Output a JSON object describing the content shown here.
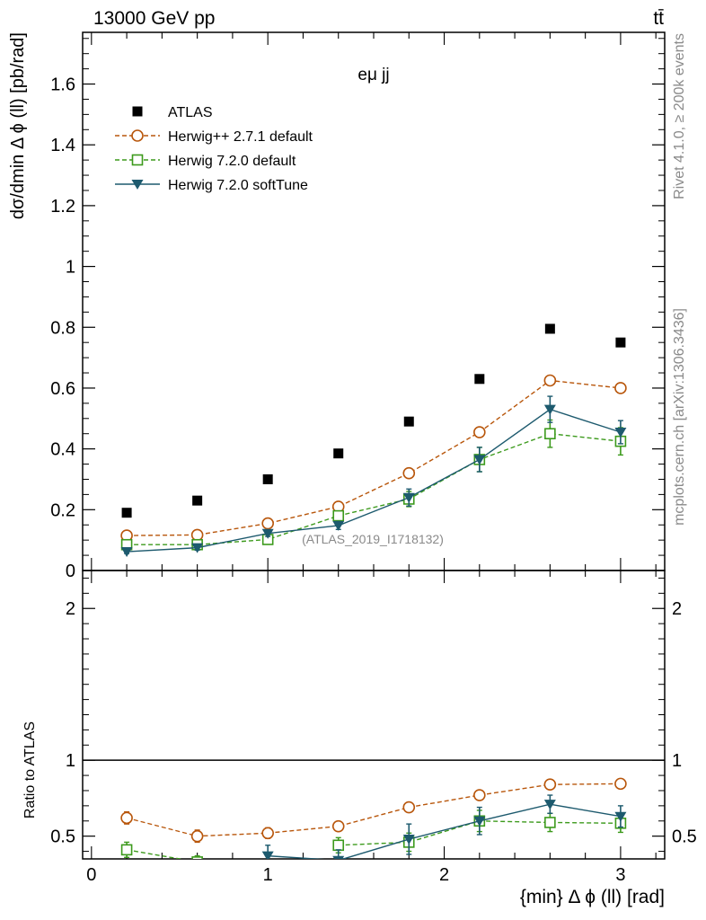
{
  "header": {
    "energy_label": "13000 GeV pp",
    "process_label": "tt̄",
    "side_label_1": "Rivet 4.1.0, ≥ 200k events",
    "side_label_2": "mcplots.cern.ch [arXiv:1306.3436]"
  },
  "chart_data": [
    {
      "type": "scatter",
      "panel": "main",
      "title": "eμ jj",
      "watermark": "(ATLAS_2019_I1718132)",
      "ylabel": "dσ/dmin Δ ϕ (ll) [pb/rad]",
      "xlim": [
        -0.05,
        3.25
      ],
      "ylim": [
        0,
        1.77
      ],
      "y_ticks": [
        0,
        0.2,
        0.4,
        0.6,
        0.8,
        1,
        1.2,
        1.4,
        1.6
      ],
      "y_tick_labels": [
        "0",
        "0.2",
        "0.4",
        "0.6",
        "0.8",
        "1",
        "1.2",
        "1.4",
        "1.6"
      ],
      "legend_position": "top-left",
      "x": [
        0.2,
        0.6,
        1.0,
        1.4,
        1.8,
        2.2,
        2.6,
        3.0
      ],
      "series": [
        {
          "name": "ATLAS",
          "marker": "filled-square",
          "color": "#000000",
          "line": "none",
          "values": [
            0.19,
            0.23,
            0.3,
            0.385,
            0.49,
            0.63,
            0.795,
            0.75
          ],
          "errors": [
            0,
            0,
            0,
            0,
            0,
            0,
            0,
            0
          ]
        },
        {
          "name": "Herwig++ 2.7.1 default",
          "marker": "open-circle",
          "color": "#b8560b",
          "line": "dashed",
          "values": [
            0.115,
            0.117,
            0.155,
            0.21,
            0.32,
            0.455,
            0.625,
            0.6
          ],
          "errors": [
            0.008,
            0.008,
            0.009,
            0.01,
            0.011,
            0.013,
            0.015,
            0.014
          ]
        },
        {
          "name": "Herwig 7.2.0 default",
          "marker": "open-square",
          "color": "#3c9a1c",
          "line": "dashed",
          "values": [
            0.085,
            0.085,
            0.102,
            0.18,
            0.235,
            0.365,
            0.45,
            0.425
          ],
          "errors": [
            0.008,
            0.008,
            0.01,
            0.015,
            0.025,
            0.04,
            0.045,
            0.045
          ]
        },
        {
          "name": "Herwig 7.2.0 softTune",
          "marker": "filled-triangle-down",
          "color": "#1d5a6e",
          "line": "solid",
          "values": [
            0.062,
            0.075,
            0.122,
            0.148,
            0.24,
            0.365,
            0.53,
            0.455
          ],
          "errors": [
            0.006,
            0.008,
            0.01,
            0.013,
            0.028,
            0.04,
            0.043,
            0.038
          ]
        }
      ]
    },
    {
      "type": "scatter",
      "panel": "ratio",
      "ylabel": "Ratio to ATLAS",
      "xlabel": "{min} Δ ϕ (ll) [rad]",
      "xlim": [
        -0.05,
        3.25
      ],
      "ylim": [
        0.35,
        2.25
      ],
      "reference_line": 1,
      "x_ticks": [
        0,
        1,
        2,
        3
      ],
      "x_tick_labels": [
        "0",
        "1",
        "2",
        "3"
      ],
      "y_ticks": [
        0.5,
        1,
        2
      ],
      "y_tick_labels": [
        "0.5",
        "1",
        "2"
      ],
      "x": [
        0.2,
        0.6,
        1.0,
        1.4,
        1.8,
        2.2,
        2.6,
        3.0
      ],
      "series": [
        {
          "name": "Herwig++ 2.7.1 default",
          "marker": "open-circle",
          "color": "#b8560b",
          "line": "dashed",
          "values": [
            0.62,
            0.5,
            0.52,
            0.565,
            0.69,
            0.77,
            0.84,
            0.845
          ],
          "errors": [
            0.04,
            0.04,
            0.035,
            0.03,
            0.025,
            0.02,
            0.015,
            0.015
          ]
        },
        {
          "name": "Herwig 7.2.0 default",
          "marker": "open-square",
          "color": "#3c9a1c",
          "line": "dashed",
          "values": [
            0.41,
            0.33,
            null,
            0.44,
            0.46,
            0.6,
            0.59,
            0.585
          ],
          "errors": [
            0.05,
            0.04,
            null,
            0.05,
            0.06,
            0.07,
            0.06,
            0.06
          ]
        },
        {
          "name": "Herwig 7.2.0 softTune",
          "marker": "filled-triangle-down",
          "color": "#1d5a6e",
          "line": "solid",
          "values": [
            null,
            null,
            0.37,
            0.34,
            0.48,
            0.6,
            0.71,
            0.63
          ],
          "errors": [
            null,
            null,
            0.07,
            0.07,
            0.1,
            0.09,
            0.06,
            0.07
          ]
        }
      ]
    }
  ]
}
